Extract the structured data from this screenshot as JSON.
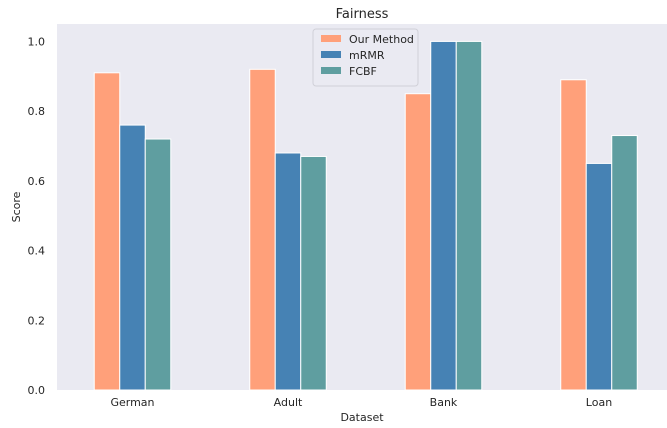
{
  "chart_data": {
    "type": "bar",
    "title": "Fairness",
    "xlabel": "Dataset",
    "ylabel": "Score",
    "categories": [
      "German",
      "Adult",
      "Bank",
      "Loan"
    ],
    "series": [
      {
        "name": "Our Method",
        "color": "#ffa07a",
        "values": [
          0.91,
          0.92,
          0.85,
          0.89
        ]
      },
      {
        "name": "mRMR",
        "color": "#4682b4",
        "values": [
          0.76,
          0.68,
          1.0,
          0.65
        ]
      },
      {
        "name": "FCBF",
        "color": "#5f9ea0",
        "values": [
          0.72,
          0.67,
          1.0,
          0.73
        ]
      }
    ],
    "ylim": [
      0,
      1.05
    ],
    "yticks": [
      "0.0",
      "0.2",
      "0.4",
      "0.6",
      "0.8",
      "1.0"
    ],
    "grid": false,
    "legend_position": "top-center",
    "background_color": "#eaeaf2"
  }
}
